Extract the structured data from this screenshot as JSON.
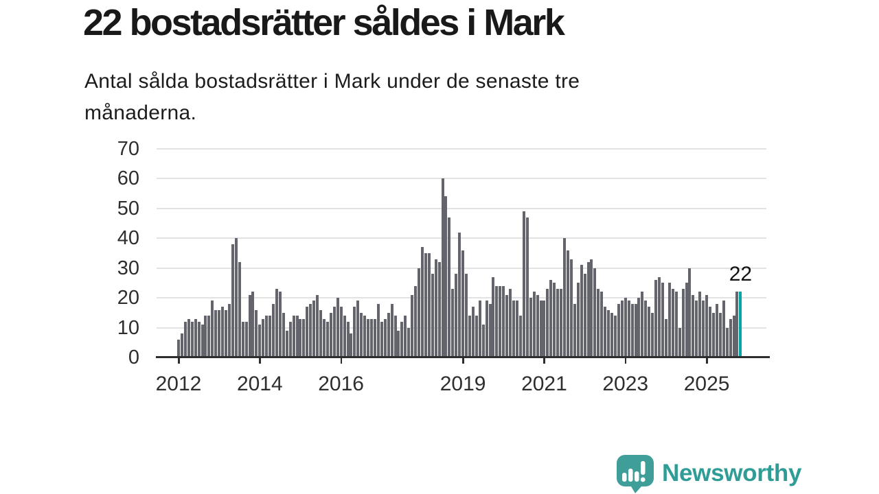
{
  "header": {
    "title": "22 bostadsrätter såldes i Mark",
    "subtitle": "Antal sålda bostadsrätter i Mark under de senaste tre månaderna."
  },
  "chart_data": {
    "type": "bar",
    "title": "22 bostadsrätter såldes i Mark",
    "xlabel": "",
    "ylabel": "",
    "x_start": "2012-01",
    "x_end": "2025-11",
    "ylim": [
      0,
      70
    ],
    "grid": true,
    "y_ticks": [
      0,
      10,
      20,
      30,
      40,
      50,
      60,
      70
    ],
    "x_tick_labels": [
      "2012",
      "2014",
      "2016",
      "2019",
      "2021",
      "2023",
      "2025"
    ],
    "x_tick_month_indices": [
      0,
      24,
      48,
      84,
      108,
      132,
      156
    ],
    "values": [
      6,
      8,
      12,
      13,
      12,
      13,
      12,
      11,
      14,
      14,
      19,
      16,
      16,
      17,
      16,
      18,
      38,
      40,
      32,
      12,
      12,
      21,
      22,
      16,
      11,
      13,
      14,
      14,
      18,
      23,
      22,
      15,
      9,
      12,
      14,
      14,
      13,
      13,
      17,
      18,
      19,
      21,
      16,
      13,
      12,
      15,
      17,
      20,
      17,
      14,
      12,
      8,
      17,
      19,
      15,
      14,
      13,
      13,
      13,
      18,
      12,
      13,
      15,
      18,
      14,
      9,
      12,
      14,
      10,
      21,
      24,
      30,
      37,
      35,
      35,
      28,
      33,
      32,
      60,
      54,
      47,
      23,
      28,
      42,
      36,
      28,
      14,
      17,
      14,
      19,
      11,
      19,
      18,
      27,
      24,
      24,
      24,
      21,
      23,
      19,
      19,
      14,
      49,
      47,
      20,
      22,
      21,
      19,
      19,
      23,
      26,
      25,
      23,
      23,
      40,
      36,
      33,
      18,
      25,
      31,
      28,
      32,
      33,
      30,
      23,
      22,
      17,
      16,
      15,
      14,
      18,
      19,
      20,
      19,
      18,
      18,
      20,
      22,
      19,
      17,
      15,
      26,
      27,
      25,
      13,
      25,
      23,
      22,
      10,
      23,
      25,
      30,
      21,
      19,
      22,
      19,
      21,
      17,
      15,
      18,
      15,
      19,
      10,
      13,
      14,
      22,
      22
    ],
    "highlight": {
      "index": 166,
      "value": 22,
      "label": "22"
    },
    "colors": {
      "bar": "#64646d",
      "highlight": "#00a5a5",
      "grid": "#e2e2e2",
      "axis": "#2d2d2d"
    }
  },
  "footer": {
    "brand": "Newsworthy",
    "brand_color": "#2f9d96",
    "logo_color": "#3f9e98"
  }
}
